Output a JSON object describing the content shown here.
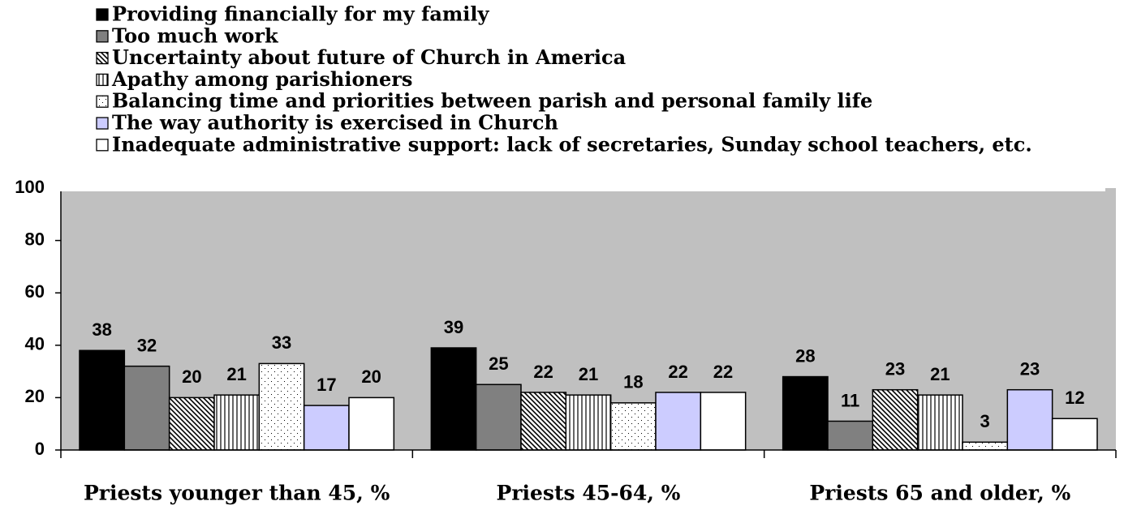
{
  "chart_data": {
    "type": "bar",
    "categories": [
      "Priests younger than 45, %",
      "Priests 45-64, %",
      "Priests 65 and older, %"
    ],
    "series": [
      {
        "name": "Providing financially for my family",
        "color": "#000000",
        "pattern": "solid",
        "values": [
          38,
          39,
          28
        ]
      },
      {
        "name": "Too much work",
        "color": "#808080",
        "pattern": "solid",
        "values": [
          32,
          25,
          11
        ]
      },
      {
        "name": "Uncertainty about future of Church in America",
        "color": "#000000",
        "pattern": "diagonal",
        "values": [
          20,
          22,
          23
        ]
      },
      {
        "name": "Apathy among parishioners",
        "color": "#000000",
        "pattern": "vertical",
        "values": [
          21,
          21,
          21
        ]
      },
      {
        "name": "Balancing time and priorities between parish and personal family life",
        "color": "#000000",
        "pattern": "dots",
        "values": [
          33,
          18,
          3
        ]
      },
      {
        "name": "The way authority is exercised in Church",
        "color": "#ccccff",
        "pattern": "solid",
        "values": [
          17,
          22,
          23
        ]
      },
      {
        "name": "Inadequate administrative support: lack of secretaries, Sunday school teachers, etc.",
        "color": "#ffffff",
        "pattern": "solid",
        "values": [
          20,
          22,
          12
        ]
      }
    ],
    "ylim": [
      0,
      100
    ],
    "yticks": [
      0,
      20,
      40,
      60,
      80,
      100
    ],
    "plot_background": "#c0c0c0"
  }
}
